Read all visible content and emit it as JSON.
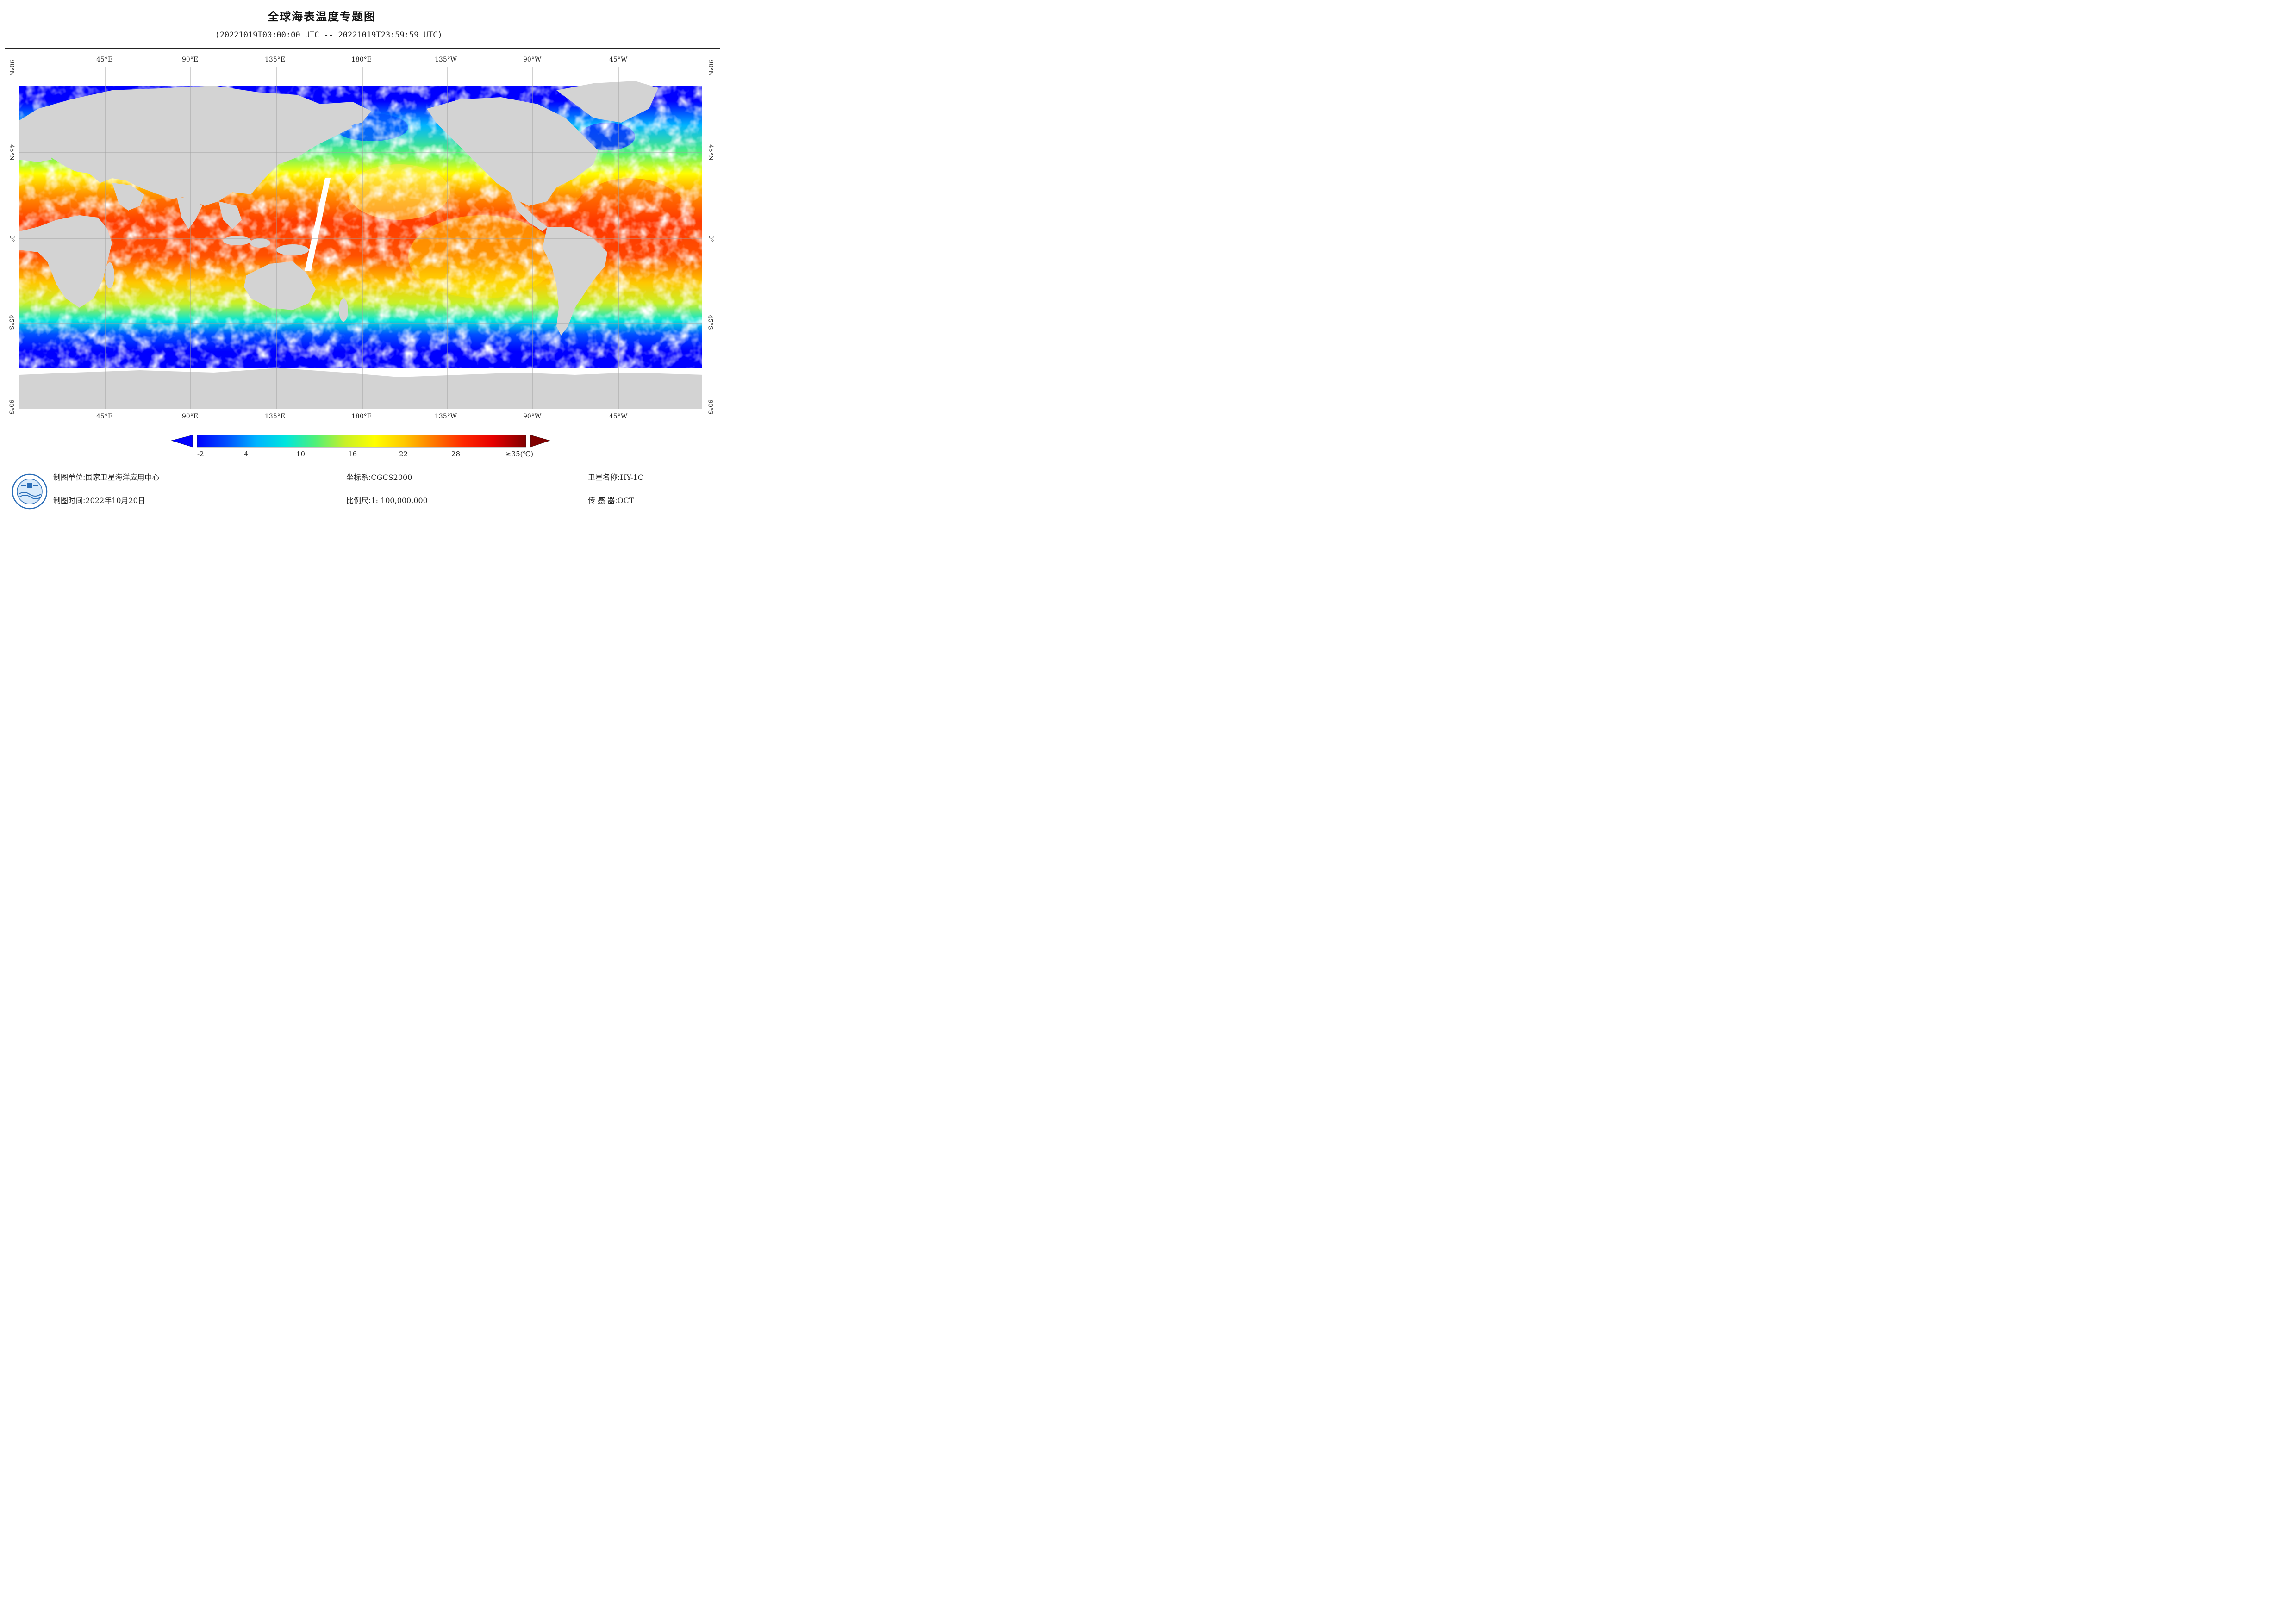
{
  "title": "全球海表温度专题图",
  "subtitle": "(20221019T00:00:00 UTC -- 20221019T23:59:59 UTC)",
  "map": {
    "lon_ticks_top": [
      "45°E",
      "90°E",
      "135°E",
      "180°E",
      "135°W",
      "90°W",
      "45°W"
    ],
    "lon_ticks_bottom": [
      "45°E",
      "90°E",
      "135°E",
      "180°E",
      "135°W",
      "90°W",
      "45°W"
    ],
    "lat_ticks_left": [
      "90°N",
      "45°N",
      "0°",
      "45°S",
      "90°S"
    ],
    "lat_ticks_right": [
      "90°N",
      "45°N",
      "0°",
      "45°S",
      "90°S"
    ],
    "colors": {
      "land": "#d3d3d3",
      "cloud": "#ffffff",
      "grid": "#a0a0a0"
    }
  },
  "colorbar": {
    "labels": [
      "-2",
      "4",
      "10",
      "16",
      "22",
      "28",
      "≥35(℃)"
    ],
    "min": -2,
    "max": 35,
    "stops": [
      "#0000ff",
      "#0050ff",
      "#00b4ff",
      "#00e6dc",
      "#50f078",
      "#c8f028",
      "#ffff00",
      "#ffc800",
      "#ff7800",
      "#ff2800",
      "#e60000",
      "#800000"
    ],
    "under_color": "#0000ff",
    "over_color": "#800000"
  },
  "footer": {
    "unit_label": "制图单位:",
    "unit_value": "国家卫星海洋应用中心",
    "time_label": "制图时间:",
    "time_value": "2022年10月20日",
    "crs_label": "坐标系:",
    "crs_value": "CGCS2000",
    "scale_label": "比例尺:",
    "scale_value": "1: 100,000,000",
    "sat_label": "卫星名称:",
    "sat_value": "HY-1C",
    "sensor_label": "传 感 器:",
    "sensor_value": "OCT"
  },
  "logo_icon": "nsoas-logo-icon"
}
